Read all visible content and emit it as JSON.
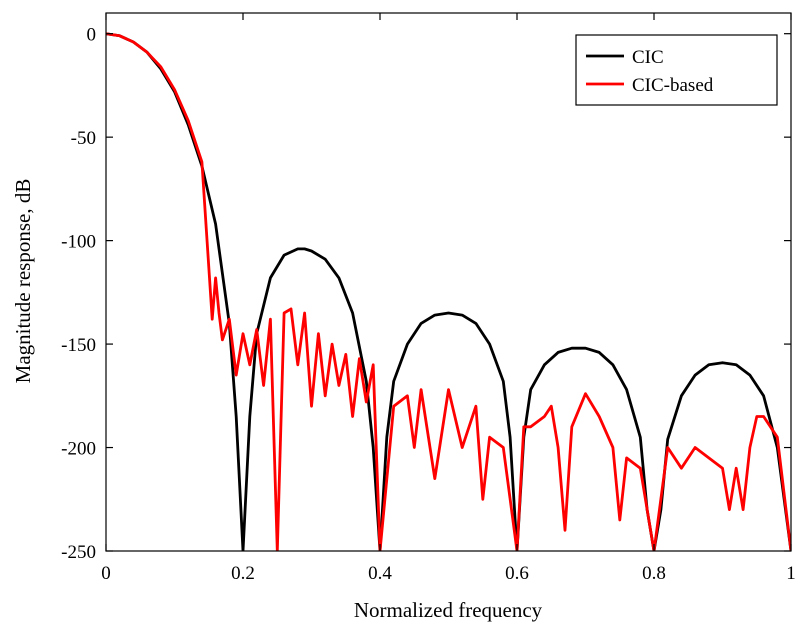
{
  "chart_data": {
    "type": "line",
    "title": "",
    "xlabel": "Normalized frequency",
    "ylabel": "Magnitude response, dB",
    "xlim": [
      0,
      1
    ],
    "ylim": [
      -250,
      10
    ],
    "xticks": [
      0,
      0.2,
      0.4,
      0.6,
      0.8,
      1
    ],
    "xtick_labels": [
      "0",
      "0.2",
      "0.4",
      "0.6",
      "0.8",
      "1"
    ],
    "yticks": [
      0,
      -50,
      -100,
      -150,
      -200,
      -250
    ],
    "ytick_labels": [
      "0",
      "-50",
      "-100",
      "-150",
      "-200",
      "-250"
    ],
    "grid": false,
    "legend_position": "top-right",
    "series": [
      {
        "name": "CIC",
        "color": "#000000",
        "x": [
          0,
          0.02,
          0.04,
          0.06,
          0.08,
          0.1,
          0.12,
          0.14,
          0.16,
          0.18,
          0.19,
          0.2,
          0.21,
          0.22,
          0.24,
          0.26,
          0.28,
          0.29,
          0.3,
          0.32,
          0.34,
          0.36,
          0.38,
          0.39,
          0.4,
          0.41,
          0.42,
          0.44,
          0.46,
          0.48,
          0.5,
          0.52,
          0.54,
          0.56,
          0.58,
          0.59,
          0.6,
          0.61,
          0.62,
          0.64,
          0.66,
          0.68,
          0.7,
          0.72,
          0.74,
          0.76,
          0.78,
          0.79,
          0.8,
          0.81,
          0.82,
          0.84,
          0.86,
          0.88,
          0.9,
          0.92,
          0.94,
          0.96,
          0.98,
          1.0
        ],
        "y": [
          0,
          -1,
          -4,
          -9,
          -17,
          -28,
          -44,
          -64,
          -92,
          -140,
          -185,
          -250,
          -185,
          -145,
          -118,
          -107,
          -104,
          -104,
          -105,
          -109,
          -118,
          -135,
          -168,
          -200,
          -250,
          -195,
          -168,
          -150,
          -140,
          -136,
          -135,
          -136,
          -140,
          -150,
          -168,
          -195,
          -250,
          -195,
          -172,
          -160,
          -154,
          -152,
          -152,
          -154,
          -160,
          -172,
          -195,
          -230,
          -250,
          -230,
          -196,
          -175,
          -165,
          -160,
          -159,
          -160,
          -165,
          -175,
          -200,
          -250
        ]
      },
      {
        "name": "CIC-based",
        "color": "#ff0000",
        "x": [
          0,
          0.02,
          0.04,
          0.06,
          0.08,
          0.1,
          0.12,
          0.14,
          0.155,
          0.16,
          0.165,
          0.17,
          0.18,
          0.19,
          0.2,
          0.21,
          0.22,
          0.23,
          0.24,
          0.25,
          0.26,
          0.27,
          0.28,
          0.29,
          0.3,
          0.31,
          0.32,
          0.33,
          0.34,
          0.35,
          0.36,
          0.37,
          0.38,
          0.39,
          0.4,
          0.42,
          0.44,
          0.45,
          0.46,
          0.48,
          0.5,
          0.52,
          0.54,
          0.55,
          0.56,
          0.58,
          0.6,
          0.61,
          0.62,
          0.64,
          0.65,
          0.66,
          0.67,
          0.68,
          0.7,
          0.72,
          0.74,
          0.75,
          0.76,
          0.78,
          0.8,
          0.82,
          0.84,
          0.86,
          0.88,
          0.9,
          0.91,
          0.92,
          0.93,
          0.94,
          0.95,
          0.96,
          0.98,
          1.0
        ],
        "y": [
          0,
          -1,
          -4,
          -9,
          -16,
          -27,
          -42,
          -62,
          -138,
          -118,
          -135,
          -148,
          -138,
          -165,
          -145,
          -160,
          -143,
          -170,
          -138,
          -250,
          -135,
          -133,
          -160,
          -135,
          -180,
          -145,
          -175,
          -150,
          -170,
          -155,
          -185,
          -157,
          -178,
          -160,
          -250,
          -180,
          -175,
          -200,
          -172,
          -215,
          -172,
          -200,
          -180,
          -225,
          -195,
          -200,
          -250,
          -190,
          -190,
          -185,
          -180,
          -200,
          -240,
          -190,
          -174,
          -185,
          -200,
          -235,
          -205,
          -210,
          -250,
          -200,
          -210,
          -200,
          -205,
          -210,
          -230,
          -210,
          -230,
          -200,
          -185,
          -185,
          -195,
          -250
        ]
      }
    ]
  }
}
